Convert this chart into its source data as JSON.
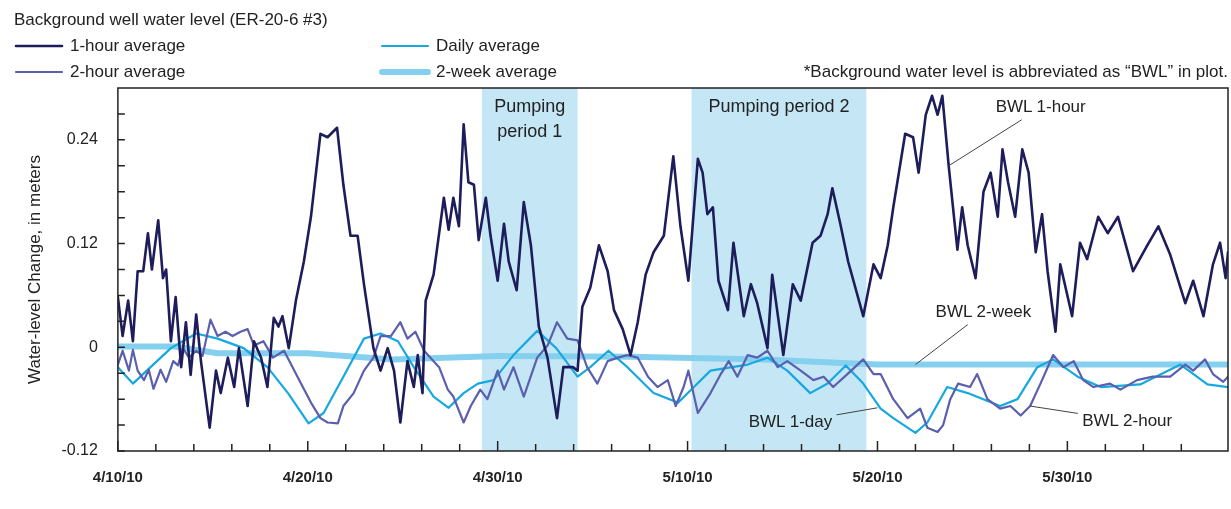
{
  "chart_data": {
    "type": "line",
    "ylabel": "Water-level Change, in meters",
    "legend_title": "Background well water level (ER-20-6 #3)",
    "legend": "top left",
    "marker": "none",
    "xlim": [
      "--04-10",
      "--06-07T11:00"
    ],
    "xticks": [
      {
        "value": "--04-10",
        "label": "4/10/10"
      },
      {
        "value": "--04-12",
        "label": null
      },
      {
        "value": "--04-14",
        "label": null
      },
      {
        "value": "--04-16",
        "label": null
      },
      {
        "value": "--04-18",
        "label": null
      },
      {
        "value": "--04-20",
        "label": "4/20/10"
      },
      {
        "value": "--04-22",
        "label": null
      },
      {
        "value": "--04-24",
        "label": null
      },
      {
        "value": "--04-26",
        "label": null
      },
      {
        "value": "--04-28",
        "label": null
      },
      {
        "value": "--04-30",
        "label": "4/30/10"
      },
      {
        "value": "--05-02",
        "label": null
      },
      {
        "value": "--05-04",
        "label": null
      },
      {
        "value": "--05-06",
        "label": null
      },
      {
        "value": "--05-08",
        "label": null
      },
      {
        "value": "--05-10",
        "label": "5/10/10"
      },
      {
        "value": "--05-12",
        "label": null
      },
      {
        "value": "--05-14",
        "label": null
      },
      {
        "value": "--05-16",
        "label": null
      },
      {
        "value": "--05-18",
        "label": null
      },
      {
        "value": "--05-20",
        "label": "5/20/10"
      },
      {
        "value": "--05-22",
        "label": null
      },
      {
        "value": "--05-24",
        "label": null
      },
      {
        "value": "--05-26",
        "label": null
      },
      {
        "value": "--05-28",
        "label": null
      },
      {
        "value": "--05-30",
        "label": "5/30/10"
      },
      {
        "value": "--06-01",
        "label": null
      },
      {
        "value": "--06-03",
        "label": null
      },
      {
        "value": "--06-05",
        "label": null
      }
    ],
    "ylim": [
      -0.12,
      0.3
    ],
    "yticks": [
      -0.12,
      {
        "value": -0.09,
        "label": null
      },
      {
        "value": -0.06,
        "label": null
      },
      {
        "value": -0.03,
        "label": null
      },
      0,
      {
        "value": 0.03,
        "label": null
      },
      {
        "value": 0.06,
        "label": null
      },
      {
        "value": 0.09,
        "label": null
      },
      0.12,
      {
        "value": 0.15,
        "label": null
      },
      {
        "value": 0.18,
        "label": null
      },
      {
        "value": 0.21,
        "label": null
      },
      0.24,
      {
        "value": 0.27,
        "label": null
      }
    ],
    "bands": [
      {
        "axis": "x",
        "from": "--04-29T04:00",
        "to": "--05-04T05:00",
        "label": "Pumping period 1",
        "color": "#c4e6f5"
      },
      {
        "axis": "x",
        "from": "--05-10T05:00",
        "to": "--05-19T10:00",
        "label": "Pumping period 2",
        "color": "#c4e6f5"
      }
    ],
    "annotations": [
      "*Background water level is abbreviated as “BWL” in plot.",
      {
        "text": "BWL 1-hour",
        "x": "--05-23T18:00",
        "y": 0.21
      },
      {
        "text": "BWL 2-week",
        "x": "--05-22T00:00",
        "y": -0.02
      },
      {
        "text": "BWL 1-day",
        "x": "--05-20T00:00",
        "y": -0.07
      },
      {
        "text": "BWL 2-hour",
        "x": "--05-28T01:00",
        "y": -0.068
      }
    ],
    "series": [
      {
        "name": "1-hour average",
        "color": "#1e1d5c",
        "x": [
          "--04-10T00:00",
          "--04-10T06:00",
          "--04-10T13:00",
          "--04-10T19:00",
          "--04-11T01:00",
          "--04-11T08:00",
          "--04-11T14:00",
          "--04-11T19:00",
          "--04-12T03:00",
          "--04-12T09:00",
          "--04-12T13:00",
          "--04-12T19:00",
          "--04-13T01:00",
          "--04-13T08:00",
          "--04-13T14:00",
          "--04-13T20:00",
          "--04-14T03:00",
          "--04-14T09:00",
          "--04-14T20:00",
          "--04-15T04:00",
          "--04-15T10:00",
          "--04-15T19:00",
          "--04-16T03:00",
          "--04-16T09:00",
          "--04-16T20:00",
          "--04-17T04:00",
          "--04-17T13:00",
          "--04-17T21:00",
          "--04-18T05:00",
          "--04-18T11:00",
          "--04-18T16:00",
          "--04-19T00:00",
          "--04-19T09:00",
          "--04-19T19:00",
          "--04-20T04:00",
          "--04-20T16:00",
          "--04-21T01:00",
          "--04-21T13:00",
          "--04-21T21:00",
          "--04-22T06:00",
          "--04-22T15:00",
          "--04-22T23:00",
          "--04-23T11:00",
          "--04-23T20:00",
          "--04-24T05:00",
          "--04-24T13:00",
          "--04-24T21:00",
          "--04-25T06:00",
          "--04-25T14:00",
          "--04-25T19:00",
          "--04-26T01:00",
          "--04-26T05:00",
          "--04-26T15:00",
          "--04-27T04:00",
          "--04-27T10:00",
          "--04-27T16:00",
          "--04-27T23:00",
          "--04-28T05:00",
          "--04-28T11:00",
          "--04-28T18:00",
          "--04-29T00:00",
          "--04-29T09:00",
          "--04-29T15:00",
          "--04-30T00:00",
          "--04-30T08:00",
          "--04-30T14:00",
          "--05-01T00:00",
          "--05-01T09:00",
          "--05-01T18:00",
          "--05-02T04:00",
          "--05-02T15:00",
          "--05-03T03:00",
          "--05-03T11:00",
          "--05-03T23:00",
          "--05-04T05:00",
          "--05-04T11:00",
          "--05-04T21:00",
          "--05-05T08:00",
          "--05-05T19:00",
          "--05-06T03:00",
          "--05-06T14:00",
          "--05-07T00:00",
          "--05-07T09:00",
          "--05-07T19:00",
          "--05-08T05:00",
          "--05-08T18:00",
          "--05-09T06:00",
          "--05-09T15:00",
          "--05-10T01:00",
          "--05-10T13:00",
          "--05-10T19:00",
          "--05-11T01:00",
          "--05-11T08:00",
          "--05-11T15:00",
          "--05-12T03:00",
          "--05-12T10:00",
          "--05-12T23:00",
          "--05-13T08:00",
          "--05-13T16:00",
          "--05-14T05:00",
          "--05-14T11:00",
          "--05-15T01:00",
          "--05-15T13:00",
          "--05-15T23:00",
          "--05-16T14:00",
          "--05-17T00:00",
          "--05-17T09:00",
          "--05-17T15:00",
          "--05-18T01:00",
          "--05-18T11:00",
          "--05-19T06:00",
          "--05-19T19:00",
          "--05-20T04:00",
          "--05-20T13:00",
          "--05-20T20:00",
          "--05-21T11:00",
          "--05-21T21:00",
          "--05-22T04:00",
          "--05-22T13:00",
          "--05-22T21:00",
          "--05-23T04:00",
          "--05-23T10:00",
          "--05-23T18:00",
          "--05-24T05:00",
          "--05-24T11:00",
          "--05-24T18:00",
          "--05-25T04:00",
          "--05-25T14:00",
          "--05-25T23:00",
          "--05-26T08:00",
          "--05-26T14:00",
          "--05-26T21:00",
          "--05-27T06:00",
          "--05-27T15:00",
          "--05-27T23:00",
          "--05-28T08:00",
          "--05-28T16:00",
          "--05-28T23:00",
          "--05-29T09:00",
          "--05-29T15:00",
          "--05-30T06:00",
          "--05-30T16:00",
          "--05-31T01:00",
          "--05-31T15:00",
          "--06-01T03:00",
          "--06-01T16:00",
          "--06-02T11:00",
          "--06-03T05:00",
          "--06-03T19:00",
          "--06-04T10:00",
          "--06-05T05:00",
          "--06-05T15:00",
          "--06-06T04:00",
          "--06-06T16:00",
          "--06-07T01:00",
          "--06-07T08:00",
          "--06-07T11:00"
        ],
        "values": [
          0.058,
          0.013,
          0.054,
          0.007,
          0.088,
          0.088,
          0.132,
          0.09,
          0.147,
          0.08,
          0.09,
          0.007,
          0.058,
          -0.023,
          0.029,
          -0.032,
          0.038,
          -0.016,
          -0.093,
          -0.027,
          -0.053,
          -0.012,
          -0.046,
          -0.001,
          -0.068,
          0.007,
          -0.012,
          -0.046,
          0.034,
          0.024,
          0.036,
          -0.001,
          0.054,
          0.099,
          0.151,
          0.247,
          0.243,
          0.254,
          0.188,
          0.129,
          0.129,
          0.073,
          -0.001,
          -0.027,
          -0.001,
          -0.027,
          -0.087,
          -0.016,
          -0.046,
          -0.009,
          -0.053,
          0.054,
          0.084,
          0.173,
          0.136,
          0.173,
          0.14,
          0.258,
          0.191,
          0.188,
          0.124,
          0.173,
          0.129,
          0.077,
          0.143,
          0.099,
          0.066,
          0.168,
          0.118,
          0.024,
          -0.012,
          -0.082,
          -0.023,
          -0.023,
          -0.027,
          0.047,
          0.069,
          0.118,
          0.088,
          0.043,
          0.021,
          -0.009,
          0.029,
          0.084,
          0.11,
          0.129,
          0.221,
          0.14,
          0.077,
          0.218,
          0.202,
          0.154,
          0.162,
          0.077,
          0.043,
          0.121,
          0.036,
          0.073,
          0.051,
          -0.001,
          0.084,
          -0.009,
          0.073,
          0.054,
          0.121,
          0.129,
          0.154,
          0.184,
          0.143,
          0.099,
          0.036,
          0.096,
          0.08,
          0.118,
          0.162,
          0.247,
          0.243,
          0.202,
          0.269,
          0.291,
          0.269,
          0.291,
          0.21,
          0.113,
          0.162,
          0.118,
          0.08,
          0.18,
          0.202,
          0.151,
          0.229,
          0.191,
          0.151,
          0.229,
          0.202,
          0.11,
          0.154,
          0.088,
          0.018,
          0.096,
          0.036,
          0.121,
          0.102,
          0.151,
          0.132,
          0.151,
          0.088,
          0.118,
          0.14,
          0.107,
          0.051,
          0.077,
          0.036,
          0.096,
          0.121,
          0.08,
          0.11
        ]
      },
      {
        "name": "2-hour average",
        "color": "#5a5fae",
        "x": [
          "--04-10T00:00",
          "--04-10T06:00",
          "--04-10T14:00",
          "--04-10T19:00",
          "--04-11T01:00",
          "--04-11T09:00",
          "--04-11T15:00",
          "--04-11T21:00",
          "--04-12T06:00",
          "--04-12T13:00",
          "--04-12T22:00",
          "--04-13T04:00",
          "--04-13T10:00",
          "--04-13T18:00",
          "--04-14T03:00",
          "--04-14T11:00",
          "--04-14T21:00",
          "--04-15T06:00",
          "--04-15T16:00",
          "--04-16T01:00",
          "--04-16T11:00",
          "--04-16T20:00",
          "--04-17T04:00",
          "--04-17T16:00",
          "--04-18T04:00",
          "--04-18T18:00",
          "--04-19T11:00",
          "--04-20T04:00",
          "--04-20T16:00",
          "--04-21T01:00",
          "--04-21T14:00",
          "--04-21T21:00",
          "--04-22T10:00",
          "--04-22T23:00",
          "--04-23T11:00",
          "--04-23T20:00",
          "--04-24T09:00",
          "--04-24T21:00",
          "--04-25T06:00",
          "--04-25T16:00",
          "--04-26T03:00",
          "--04-26T11:00",
          "--04-26T22:00",
          "--04-27T09:00",
          "--04-27T16:00",
          "--04-28T05:00",
          "--04-28T14:00",
          "--04-29T02:00",
          "--04-29T11:00",
          "--04-30T00:00",
          "--04-30T08:00",
          "--04-30T20:00",
          "--05-01T09:00",
          "--05-02T02:00",
          "--05-02T15:00",
          "--05-03T03:00",
          "--05-03T16:00",
          "--05-04T05:00",
          "--05-04T17:00",
          "--05-05T06:00",
          "--05-05T19:00",
          "--05-06T08:00",
          "--05-06T20:00",
          "--05-07T09:00",
          "--05-07T22:00",
          "--05-08T10:00",
          "--05-08T23:00",
          "--05-09T09:00",
          "--05-09T19:00",
          "--05-10T01:00",
          "--05-10T13:00",
          "--05-11T05:00",
          "--05-11T18:00",
          "--05-12T04:00",
          "--05-12T15:00",
          "--05-13T04:00",
          "--05-13T16:00",
          "--05-14T05:00",
          "--05-14T18:00",
          "--05-15T06:00",
          "--05-15T23:00",
          "--05-16T15:00",
          "--05-17T04:00",
          "--05-17T16:00",
          "--05-18T10:00",
          "--05-19T06:00",
          "--05-19T19:00",
          "--05-20T04:00",
          "--05-20T20:00",
          "--05-21T14:00",
          "--05-22T06:00",
          "--05-22T15:00",
          "--05-23T04:00",
          "--05-23T11:00",
          "--05-23T20:00",
          "--05-24T06:00",
          "--05-24T21:00",
          "--05-25T06:00",
          "--05-25T19:00",
          "--05-26T11:00",
          "--05-27T00:00",
          "--05-27T13:00",
          "--05-28T01:00",
          "--05-28T14:00",
          "--05-29T06:00",
          "--05-29T19:00",
          "--05-30T08:00",
          "--05-30T20:00",
          "--05-31T09:00",
          "--06-01T06:00",
          "--06-01T19:00",
          "--06-02T16:00",
          "--06-03T12:00",
          "--06-04T10:00",
          "--06-05T05:00",
          "--06-05T15:00",
          "--06-06T06:00",
          "--06-06T16:00",
          "--06-07T05:00",
          "--06-07T11:00"
        ],
        "values": [
          -0.02,
          -0.004,
          -0.027,
          -0.003,
          -0.027,
          -0.038,
          -0.026,
          -0.048,
          -0.026,
          -0.04,
          -0.016,
          -0.021,
          -0.001,
          -0.012,
          -0.004,
          -0.01,
          0.032,
          0.013,
          0.018,
          0.013,
          0.018,
          0.021,
          0.002,
          0.007,
          -0.012,
          -0.004,
          -0.034,
          -0.064,
          -0.082,
          -0.087,
          -0.088,
          -0.068,
          -0.053,
          -0.027,
          -0.012,
          0.013,
          0.013,
          0.029,
          0.01,
          0.018,
          -0.004,
          -0.012,
          -0.023,
          -0.049,
          -0.057,
          -0.087,
          -0.068,
          -0.049,
          -0.06,
          -0.027,
          -0.049,
          -0.023,
          -0.057,
          -0.012,
          0.002,
          0.029,
          0.01,
          0.008,
          -0.023,
          -0.042,
          -0.016,
          -0.012,
          -0.009,
          -0.012,
          -0.034,
          -0.046,
          -0.038,
          -0.068,
          -0.046,
          -0.027,
          -0.076,
          -0.053,
          -0.031,
          -0.016,
          -0.034,
          -0.009,
          -0.012,
          -0.004,
          -0.023,
          -0.016,
          -0.027,
          -0.038,
          -0.034,
          -0.046,
          -0.031,
          -0.014,
          -0.031,
          -0.031,
          -0.06,
          -0.082,
          -0.071,
          -0.093,
          -0.098,
          -0.09,
          -0.06,
          -0.042,
          -0.046,
          -0.031,
          -0.06,
          -0.071,
          -0.068,
          -0.079,
          -0.068,
          -0.042,
          -0.009,
          -0.023,
          -0.016,
          -0.038,
          -0.046,
          -0.042,
          -0.049,
          -0.038,
          -0.034,
          -0.034,
          -0.02,
          -0.027,
          -0.014,
          -0.031,
          -0.04,
          -0.034
        ]
      },
      {
        "name": "Daily average",
        "color": "#18a8e0",
        "x": [
          "--04-10T00:00",
          "--04-10T19:00",
          "--04-12T19:00",
          "--04-14T03:00",
          "--04-15T06:00",
          "--04-16T15:00",
          "--04-17T21:00",
          "--04-18T23:00",
          "--04-20T01:00",
          "--04-20T20:00",
          "--04-21T21:00",
          "--04-22T23:00",
          "--04-23T20:00",
          "--04-24T18:00",
          "--04-25T14:00",
          "--04-26T15:00",
          "--04-27T10:00",
          "--04-28T05:00",
          "--04-28T23:00",
          "--04-29T19:00",
          "--04-30T20:00",
          "--05-02T02:00",
          "--05-03T02:00",
          "--05-04T05:00",
          "--05-04T21:00",
          "--05-05T20:00",
          "--05-06T20:00",
          "--05-08T05:00",
          "--05-09T12:00",
          "--05-10T08:00",
          "--05-11T05:00",
          "--05-13T04:00",
          "--05-14T05:00",
          "--05-15T06:00",
          "--05-16T11:00",
          "--05-17T09:00",
          "--05-18T08:00",
          "--05-19T06:00",
          "--05-20T04:00",
          "--05-20T20:00",
          "--05-22T00:00",
          "--05-22T15:00",
          "--05-23T16:00",
          "--05-24T18:00",
          "--05-26T11:00",
          "--05-27T09:00",
          "--05-28T10:00",
          "--05-29T06:00",
          "--05-30T13:00",
          "--05-31T18:00",
          "--06-02T20:00",
          "--06-04T23:00",
          "--06-06T09:00",
          "--06-07T11:00"
        ],
        "values": [
          -0.023,
          -0.042,
          -0.001,
          0.016,
          0.01,
          -0.001,
          -0.023,
          -0.053,
          -0.088,
          -0.076,
          -0.034,
          0.01,
          0.016,
          0.007,
          -0.023,
          -0.057,
          -0.07,
          -0.053,
          -0.042,
          -0.038,
          -0.009,
          0.019,
          -0.001,
          -0.034,
          -0.023,
          -0.004,
          -0.023,
          -0.053,
          -0.064,
          -0.046,
          -0.027,
          -0.02,
          -0.012,
          -0.027,
          -0.053,
          -0.042,
          -0.021,
          -0.042,
          -0.071,
          -0.082,
          -0.099,
          -0.087,
          -0.046,
          -0.053,
          -0.068,
          -0.06,
          -0.023,
          -0.014,
          -0.034,
          -0.046,
          -0.043,
          -0.02,
          -0.043,
          -0.046
        ]
      },
      {
        "name": "2-week average",
        "color": "#86d0ef",
        "x": [
          "--04-10T00:00",
          "--04-13T00:00",
          "--04-15T06:00",
          "--04-20T00:00",
          "--04-24T12:00",
          "--04-30T00:00",
          "--05-07T00:00",
          "--05-14T00:00",
          "--05-20T00:00",
          "--05-27T00:00",
          "--06-07T11:00"
        ],
        "values": [
          0.001,
          0.001,
          -0.007,
          -0.007,
          -0.014,
          -0.01,
          -0.011,
          -0.014,
          -0.02,
          -0.02,
          -0.02
        ]
      }
    ]
  }
}
